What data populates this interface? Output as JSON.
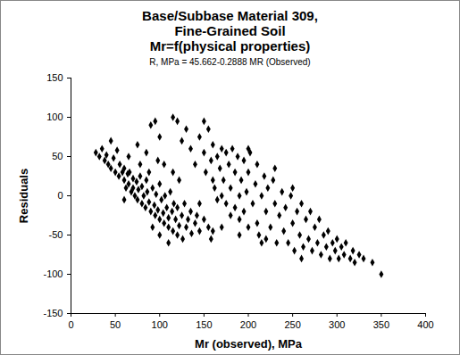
{
  "chart_data": {
    "type": "scatter",
    "title": "Base/Subbase Material 309,\nFine-Grained Soil\nMr=f(physical properties)",
    "subtitle": "R, MPa = 45.662-0.2888 MR (Observed)",
    "x_label": "Mr (observed), MPa",
    "y_label": "Residuals",
    "color": "#000000",
    "marker": "diamond",
    "grid": false,
    "xlim": [
      0,
      400
    ],
    "xticks": [
      0,
      50,
      100,
      150,
      200,
      250,
      300,
      350,
      400
    ],
    "ylim": [
      -150,
      150
    ],
    "yticks": [
      -150,
      -100,
      -50,
      0,
      50,
      100,
      150
    ],
    "x": [
      28,
      32,
      35,
      38,
      40,
      42,
      45,
      45,
      48,
      50,
      52,
      54,
      55,
      58,
      60,
      60,
      62,
      64,
      65,
      66,
      68,
      70,
      70,
      72,
      74,
      75,
      76,
      78,
      80,
      80,
      82,
      84,
      85,
      86,
      88,
      90,
      90,
      92,
      94,
      95,
      96,
      98,
      100,
      100,
      102,
      104,
      105,
      106,
      108,
      110,
      110,
      112,
      114,
      115,
      116,
      118,
      120,
      120,
      122,
      125,
      126,
      128,
      130,
      132,
      135,
      136,
      140,
      142,
      145,
      150,
      155,
      158,
      160,
      75,
      85,
      95,
      100,
      105,
      65,
      60,
      88,
      78,
      92,
      110,
      100,
      98,
      115,
      122,
      115,
      120,
      125,
      130,
      135,
      140,
      145,
      150,
      150,
      152,
      155,
      158,
      160,
      160,
      162,
      165,
      165,
      168,
      170,
      170,
      172,
      175,
      175,
      178,
      180,
      180,
      182,
      185,
      185,
      188,
      190,
      190,
      192,
      195,
      195,
      198,
      200,
      200,
      202,
      205,
      208,
      210,
      210,
      212,
      215,
      218,
      220,
      220,
      222,
      225,
      228,
      230,
      232,
      235,
      238,
      240,
      242,
      245,
      248,
      250,
      252,
      255,
      258,
      260,
      262,
      265,
      268,
      270,
      272,
      275,
      278,
      280,
      282,
      285,
      288,
      290,
      292,
      295,
      298,
      300,
      302,
      305,
      308,
      310,
      315,
      318,
      320,
      325,
      330,
      340,
      350,
      200,
      215,
      250,
      190,
      230,
      260,
      145,
      170
    ],
    "values": [
      55,
      50,
      60,
      45,
      52,
      40,
      70,
      35,
      48,
      30,
      58,
      25,
      40,
      30,
      20,
      35,
      10,
      28,
      15,
      30,
      5,
      22,
      10,
      0,
      18,
      -5,
      8,
      25,
      -10,
      12,
      0,
      -15,
      20,
      5,
      -8,
      90,
      -20,
      10,
      -12,
      -25,
      2,
      -18,
      -30,
      15,
      -5,
      -22,
      -35,
      0,
      -15,
      -28,
      -40,
      5,
      -20,
      -45,
      -10,
      -30,
      -50,
      -15,
      -38,
      -25,
      -55,
      -10,
      -40,
      -30,
      -20,
      -48,
      -35,
      -25,
      -45,
      -30,
      -40,
      -55,
      -45,
      65,
      55,
      95,
      75,
      40,
      50,
      -5,
      30,
      40,
      -40,
      -60,
      -50,
      45,
      30,
      20,
      100,
      95,
      70,
      85,
      60,
      40,
      75,
      95,
      55,
      30,
      85,
      45,
      20,
      65,
      10,
      50,
      -5,
      35,
      60,
      0,
      20,
      55,
      -10,
      40,
      10,
      -25,
      60,
      30,
      -15,
      50,
      0,
      -30,
      20,
      45,
      -20,
      5,
      -40,
      30,
      55,
      -10,
      15,
      -35,
      40,
      -50,
      0,
      25,
      -20,
      -55,
      10,
      -40,
      20,
      -10,
      -60,
      -25,
      5,
      -45,
      -15,
      -60,
      0,
      -35,
      -70,
      -20,
      -50,
      -10,
      -65,
      -30,
      -55,
      -20,
      -70,
      -40,
      -60,
      -30,
      -75,
      -50,
      -65,
      -45,
      -80,
      -60,
      -70,
      -55,
      -80,
      -65,
      -75,
      -60,
      -80,
      -70,
      -85,
      -75,
      -80,
      -85,
      -100,
      60,
      -60,
      10,
      -50,
      35,
      -80,
      -10,
      -40
    ]
  }
}
